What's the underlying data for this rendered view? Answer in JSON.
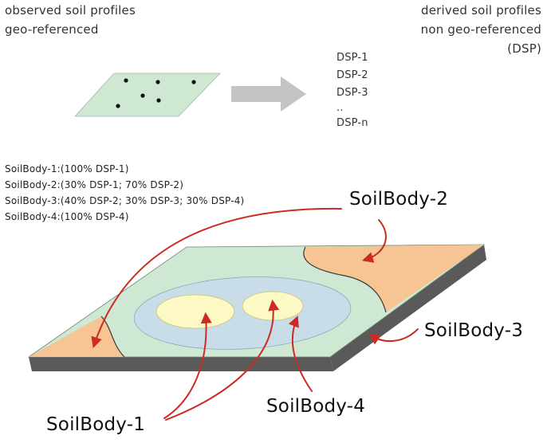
{
  "observed": {
    "line1": "observed soil profiles",
    "line2": "geo-referenced",
    "fill_color": "#cfe8d4",
    "point_color": "#111111"
  },
  "arrow": {
    "color": "#c4c4c4"
  },
  "derived": {
    "line1": "derived soil profiles",
    "line2": "non geo-referenced",
    "line3": "(DSP)"
  },
  "dsp_list": [
    "DSP-1",
    "DSP-2",
    "DSP-3",
    "..",
    "DSP-n"
  ],
  "compositions": [
    "SoilBody-1:(100% DSP-1)",
    "SoilBody-2:(30% DSP-1; 70% DSP-2)",
    "SoilBody-3:(40% DSP-2; 30% DSP-3; 30% DSP-4)",
    "SoilBody-4:(100% DSP-4)"
  ],
  "labels": {
    "body1": "SoilBody-1",
    "body2": "SoilBody-2",
    "body3": "SoilBody-3",
    "body4": "SoilBody-4"
  },
  "colors": {
    "plane_green": "#cfe8d4",
    "peach": "#f7c594",
    "blue": "#c9dde9",
    "yellow": "#fdf9c4",
    "slab": "#5a5a5a",
    "arrows": "#cc2a22"
  }
}
